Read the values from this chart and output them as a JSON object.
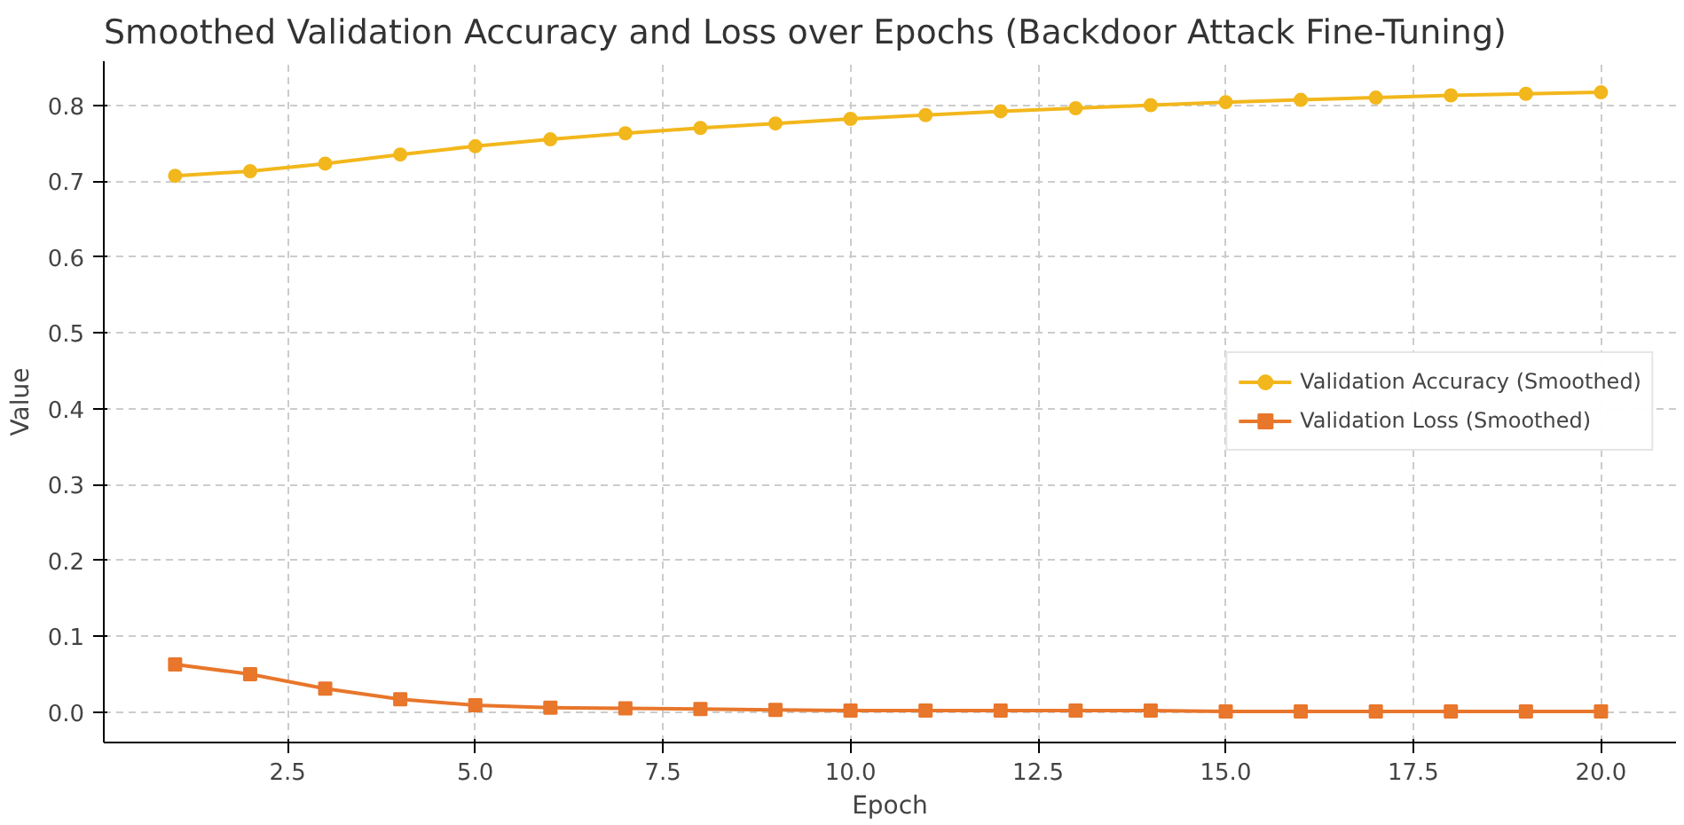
{
  "chart_data": {
    "type": "line",
    "title": "Smoothed Validation Accuracy and Loss over Epochs (Backdoor Attack Fine-Tuning)",
    "xlabel": "Epoch",
    "ylabel": "Value",
    "x": [
      1,
      2,
      3,
      4,
      5,
      6,
      7,
      8,
      9,
      10,
      11,
      12,
      13,
      14,
      15,
      16,
      17,
      18,
      19,
      20
    ],
    "series": [
      {
        "name": "Validation Accuracy (Smoothed)",
        "color": "#f2b71c",
        "marker": "circle",
        "values": [
          0.707,
          0.713,
          0.723,
          0.735,
          0.746,
          0.755,
          0.763,
          0.77,
          0.776,
          0.782,
          0.787,
          0.792,
          0.796,
          0.8,
          0.804,
          0.807,
          0.81,
          0.813,
          0.815,
          0.817
        ]
      },
      {
        "name": "Validation Loss (Smoothed)",
        "color": "#e8762b",
        "marker": "square",
        "values": [
          0.063,
          0.05,
          0.031,
          0.017,
          0.009,
          0.006,
          0.005,
          0.004,
          0.003,
          0.002,
          0.002,
          0.002,
          0.002,
          0.002,
          0.001,
          0.001,
          0.001,
          0.001,
          0.001,
          0.001
        ]
      }
    ],
    "xlim": [
      0.05,
      21.0
    ],
    "ylim": [
      -0.04,
      0.858
    ],
    "xticks": [
      {
        "value": 2.5,
        "label": "2.5"
      },
      {
        "value": 5,
        "label": "5.0"
      },
      {
        "value": 7.5,
        "label": "7.5"
      },
      {
        "value": 10,
        "label": "10.0"
      },
      {
        "value": 12.5,
        "label": "12.5"
      },
      {
        "value": 15,
        "label": "15.0"
      },
      {
        "value": 17.5,
        "label": "17.5"
      },
      {
        "value": 20,
        "label": "20.0"
      }
    ],
    "yticks": [
      {
        "value": 0,
        "label": "0.0"
      },
      0.1,
      0.2,
      0.3,
      0.4,
      0.5,
      0.6,
      0.7,
      0.8
    ],
    "grid": true,
    "legend": "right",
    "line_style": "solid"
  }
}
